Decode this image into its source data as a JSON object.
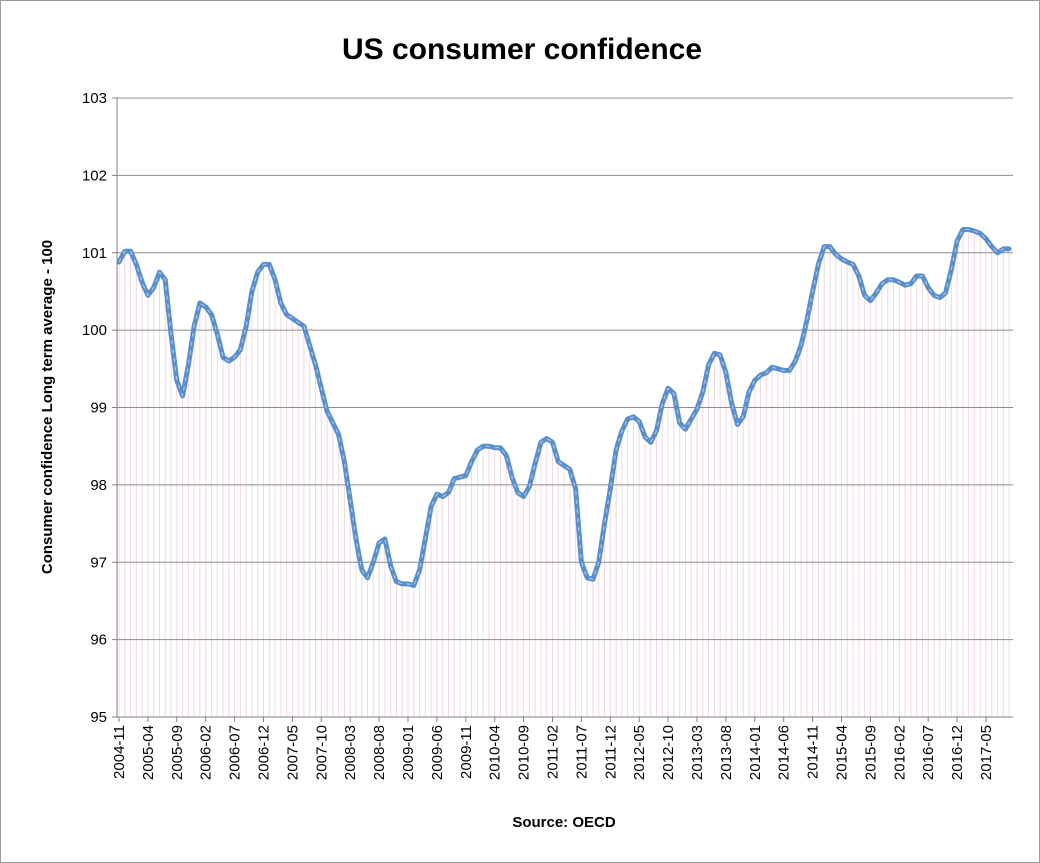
{
  "chart_data": {
    "type": "line",
    "title": "US consumer confidence",
    "xlabel": "Source: OECD",
    "ylabel": "Consumer confidence Long term average - 100",
    "ylim": [
      95,
      103
    ],
    "yticks": [
      "95",
      "96",
      "97",
      "98",
      "99",
      "100",
      "101",
      "102",
      "103"
    ],
    "x_tick_labels": [
      "2004-11",
      "2005-04",
      "2005-09",
      "2006-02",
      "2006-07",
      "2006-12",
      "2007-05",
      "2007-10",
      "2008-03",
      "2008-08",
      "2009-01",
      "2009-06",
      "2009-11",
      "2010-04",
      "2010-09",
      "2011-02",
      "2011-07",
      "2011-12",
      "2012-05",
      "2012-10",
      "2013-03",
      "2013-08",
      "2014-01",
      "2014-06",
      "2014-11",
      "2015-04",
      "2015-09",
      "2016-02",
      "2016-07",
      "2016-12",
      "2017-05"
    ],
    "grid": true,
    "legend": "none",
    "line_color": "#5b8fcb",
    "x": [
      "2004-11",
      "2004-12",
      "2005-01",
      "2005-02",
      "2005-03",
      "2005-04",
      "2005-05",
      "2005-06",
      "2005-07",
      "2005-08",
      "2005-09",
      "2005-10",
      "2005-11",
      "2005-12",
      "2006-01",
      "2006-02",
      "2006-03",
      "2006-04",
      "2006-05",
      "2006-06",
      "2006-07",
      "2006-08",
      "2006-09",
      "2006-10",
      "2006-11",
      "2006-12",
      "2007-01",
      "2007-02",
      "2007-03",
      "2007-04",
      "2007-05",
      "2007-06",
      "2007-07",
      "2007-08",
      "2007-09",
      "2007-10",
      "2007-11",
      "2007-12",
      "2008-01",
      "2008-02",
      "2008-03",
      "2008-04",
      "2008-05",
      "2008-06",
      "2008-07",
      "2008-08",
      "2008-09",
      "2008-10",
      "2008-11",
      "2008-12",
      "2009-01",
      "2009-02",
      "2009-03",
      "2009-04",
      "2009-05",
      "2009-06",
      "2009-07",
      "2009-08",
      "2009-09",
      "2009-10",
      "2009-11",
      "2009-12",
      "2010-01",
      "2010-02",
      "2010-03",
      "2010-04",
      "2010-05",
      "2010-06",
      "2010-07",
      "2010-08",
      "2010-09",
      "2010-10",
      "2010-11",
      "2010-12",
      "2011-01",
      "2011-02",
      "2011-03",
      "2011-04",
      "2011-05",
      "2011-06",
      "2011-07",
      "2011-08",
      "2011-09",
      "2011-10",
      "2011-11",
      "2011-12",
      "2012-01",
      "2012-02",
      "2012-03",
      "2012-04",
      "2012-05",
      "2012-06",
      "2012-07",
      "2012-08",
      "2012-09",
      "2012-10",
      "2012-11",
      "2012-12",
      "2013-01",
      "2013-02",
      "2013-03",
      "2013-04",
      "2013-05",
      "2013-06",
      "2013-07",
      "2013-08",
      "2013-09",
      "2013-10",
      "2013-11",
      "2013-12",
      "2014-01",
      "2014-02",
      "2014-03",
      "2014-04",
      "2014-05",
      "2014-06",
      "2014-07",
      "2014-08",
      "2014-09",
      "2014-10",
      "2014-11",
      "2014-12",
      "2015-01",
      "2015-02",
      "2015-03",
      "2015-04",
      "2015-05",
      "2015-06",
      "2015-07",
      "2015-08",
      "2015-09",
      "2015-10",
      "2015-11",
      "2015-12",
      "2016-01",
      "2016-02",
      "2016-03",
      "2016-04",
      "2016-05",
      "2016-06",
      "2016-07",
      "2016-08",
      "2016-09",
      "2016-10",
      "2016-11",
      "2016-12",
      "2017-01",
      "2017-02",
      "2017-03",
      "2017-04",
      "2017-05",
      "2017-06",
      "2017-07",
      "2017-08",
      "2017-09"
    ],
    "values": [
      100.88,
      101.02,
      101.02,
      100.85,
      100.62,
      100.45,
      100.55,
      100.75,
      100.65,
      99.95,
      99.35,
      99.15,
      99.55,
      100.05,
      100.35,
      100.3,
      100.2,
      99.95,
      99.65,
      99.6,
      99.65,
      99.75,
      100.05,
      100.5,
      100.75,
      100.85,
      100.85,
      100.65,
      100.35,
      100.2,
      100.15,
      100.1,
      100.05,
      99.8,
      99.55,
      99.25,
      98.95,
      98.8,
      98.65,
      98.3,
      97.8,
      97.3,
      96.9,
      96.8,
      97.0,
      97.25,
      97.3,
      96.95,
      96.75,
      96.72,
      96.72,
      96.7,
      96.9,
      97.3,
      97.72,
      97.88,
      97.85,
      97.9,
      98.08,
      98.1,
      98.12,
      98.3,
      98.45,
      98.5,
      98.5,
      98.48,
      98.48,
      98.38,
      98.1,
      97.9,
      97.85,
      97.98,
      98.28,
      98.55,
      98.6,
      98.55,
      98.3,
      98.25,
      98.2,
      97.95,
      97.0,
      96.8,
      96.78,
      97.0,
      97.5,
      97.95,
      98.45,
      98.7,
      98.85,
      98.88,
      98.82,
      98.62,
      98.55,
      98.7,
      99.05,
      99.25,
      99.18,
      98.8,
      98.72,
      98.85,
      98.98,
      99.2,
      99.55,
      99.7,
      99.68,
      99.45,
      99.05,
      98.78,
      98.88,
      99.2,
      99.35,
      99.42,
      99.45,
      99.52,
      99.5,
      99.48,
      99.48,
      99.6,
      99.8,
      100.12,
      100.5,
      100.85,
      101.08,
      101.08,
      100.98,
      100.92,
      100.88,
      100.85,
      100.7,
      100.45,
      100.38,
      100.48,
      100.6,
      100.65,
      100.65,
      100.62,
      100.58,
      100.6,
      100.7,
      100.7,
      100.55,
      100.45,
      100.42,
      100.48,
      100.78,
      101.15,
      101.3,
      101.3,
      101.28,
      101.25,
      101.18,
      101.08,
      101.0,
      101.05,
      101.05
    ]
  }
}
